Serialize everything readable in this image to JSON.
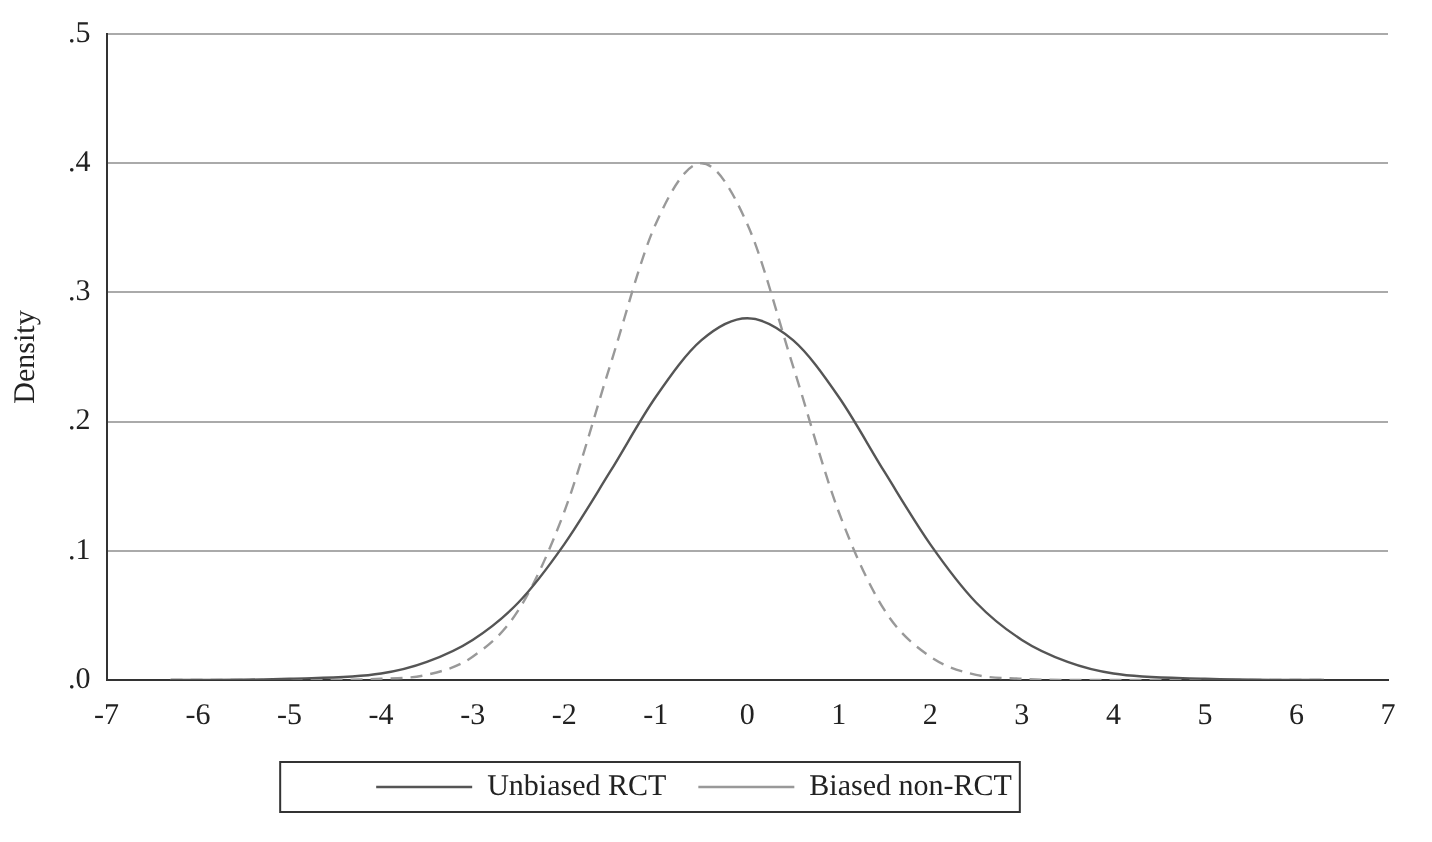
{
  "chart_data": {
    "type": "line",
    "ylabel": "Density",
    "x": [
      -6.3,
      -6,
      -5,
      -4,
      -3.5,
      -3,
      -2.5,
      -2,
      -1.5,
      -1,
      -0.5,
      0,
      0.5,
      1,
      1.5,
      2,
      2.5,
      3,
      3.5,
      4,
      5,
      6,
      6.3
    ],
    "series": [
      {
        "name": "Unbiased RCT",
        "color": "#555555",
        "line_style": "solid",
        "values": [
          0,
          0,
          0.001,
          0.005,
          0.014,
          0.031,
          0.06,
          0.105,
          0.161,
          0.219,
          0.263,
          0.28,
          0.263,
          0.219,
          0.161,
          0.105,
          0.06,
          0.031,
          0.014,
          0.005,
          0.001,
          0,
          0
        ]
      },
      {
        "name": "Biased non-RCT",
        "color": "#999999",
        "line_style": "dashed",
        "values": [
          0,
          0,
          0,
          0.001,
          0.004,
          0.018,
          0.054,
          0.13,
          0.243,
          0.353,
          0.4,
          0.353,
          0.243,
          0.13,
          0.054,
          0.018,
          0.004,
          0.001,
          0,
          0,
          0,
          0,
          0
        ]
      }
    ],
    "xlim": [
      -7,
      7
    ],
    "xticks": [
      -7,
      -6,
      -5,
      -4,
      -3,
      -2,
      -1,
      0,
      1,
      2,
      3,
      4,
      5,
      6,
      7
    ],
    "ylim": [
      0,
      0.5
    ],
    "yticks": [
      {
        "value": 0,
        "label": ".0"
      },
      {
        "value": 0.1,
        "label": ".1"
      },
      {
        "value": 0.2,
        "label": ".2"
      },
      {
        "value": 0.3,
        "label": ".3"
      },
      {
        "value": 0.4,
        "label": ".4"
      },
      {
        "value": 0.5,
        "label": ".5"
      }
    ],
    "grid": "y",
    "legend": "bottom",
    "marker": "none"
  }
}
